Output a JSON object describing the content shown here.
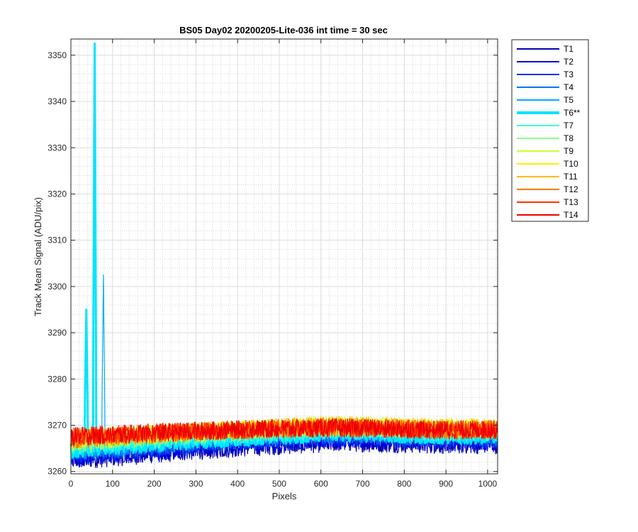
{
  "chart_data": {
    "type": "line",
    "title": "BS05 Day02 20200205-Lite-036 int time = 30 sec",
    "xlabel": "Pixels",
    "ylabel": "Track Mean Signal (ADU/pix)",
    "xlim": [
      0,
      1024
    ],
    "ylim": [
      3259.5,
      3353.5
    ],
    "xticks": [
      0,
      100,
      200,
      300,
      400,
      500,
      600,
      700,
      800,
      900,
      1000
    ],
    "yticks": [
      3260,
      3270,
      3280,
      3290,
      3300,
      3310,
      3320,
      3330,
      3340,
      3350
    ],
    "grid": true,
    "minor_grid": true,
    "legend_position": "outside-top-right",
    "series": [
      {
        "name": "T1",
        "color": "#0000aa",
        "base": 3262.5,
        "end": 3266.0,
        "noise": 2.2,
        "highlight": false
      },
      {
        "name": "T2",
        "color": "#0000dd",
        "base": 3263.0,
        "end": 3266.5,
        "noise": 2.2,
        "highlight": false
      },
      {
        "name": "T3",
        "color": "#0033ee",
        "base": 3263.5,
        "end": 3267.0,
        "noise": 2.0,
        "highlight": false
      },
      {
        "name": "T4",
        "color": "#0077ff",
        "base": 3264.0,
        "end": 3267.5,
        "noise": 2.0,
        "highlight": false
      },
      {
        "name": "T5",
        "color": "#00aaff",
        "base": 3264.5,
        "end": 3268.0,
        "noise": 2.0,
        "highlight": false,
        "spikes": [
          {
            "x": 78,
            "y": 3302.5
          }
        ]
      },
      {
        "name": "T6**",
        "color": "#00e5ff",
        "base": 3265.0,
        "end": 3268.0,
        "noise": 2.0,
        "highlight": true,
        "spikes": [
          {
            "x": 37,
            "y": 3295
          },
          {
            "x": 57,
            "y": 3352.5
          }
        ]
      },
      {
        "name": "T7",
        "color": "#44ffcc",
        "base": 3265.5,
        "end": 3268.5,
        "noise": 2.0,
        "highlight": false
      },
      {
        "name": "T8",
        "color": "#88ff88",
        "base": 3266.0,
        "end": 3269.0,
        "noise": 2.0,
        "highlight": false
      },
      {
        "name": "T9",
        "color": "#ccff33",
        "base": 3266.5,
        "end": 3269.5,
        "noise": 2.0,
        "highlight": false
      },
      {
        "name": "T10",
        "color": "#ffee00",
        "base": 3267.0,
        "end": 3269.5,
        "noise": 2.0,
        "highlight": false
      },
      {
        "name": "T11",
        "color": "#ffbb00",
        "base": 3267.0,
        "end": 3269.5,
        "noise": 2.0,
        "highlight": false
      },
      {
        "name": "T12",
        "color": "#ff7700",
        "base": 3267.0,
        "end": 3269.0,
        "noise": 2.0,
        "highlight": false
      },
      {
        "name": "T13",
        "color": "#ff3300",
        "base": 3267.5,
        "end": 3269.0,
        "noise": 2.0,
        "highlight": false
      },
      {
        "name": "T14",
        "color": "#ee0000",
        "base": 3267.5,
        "end": 3269.0,
        "noise": 2.0,
        "highlight": false
      }
    ]
  }
}
